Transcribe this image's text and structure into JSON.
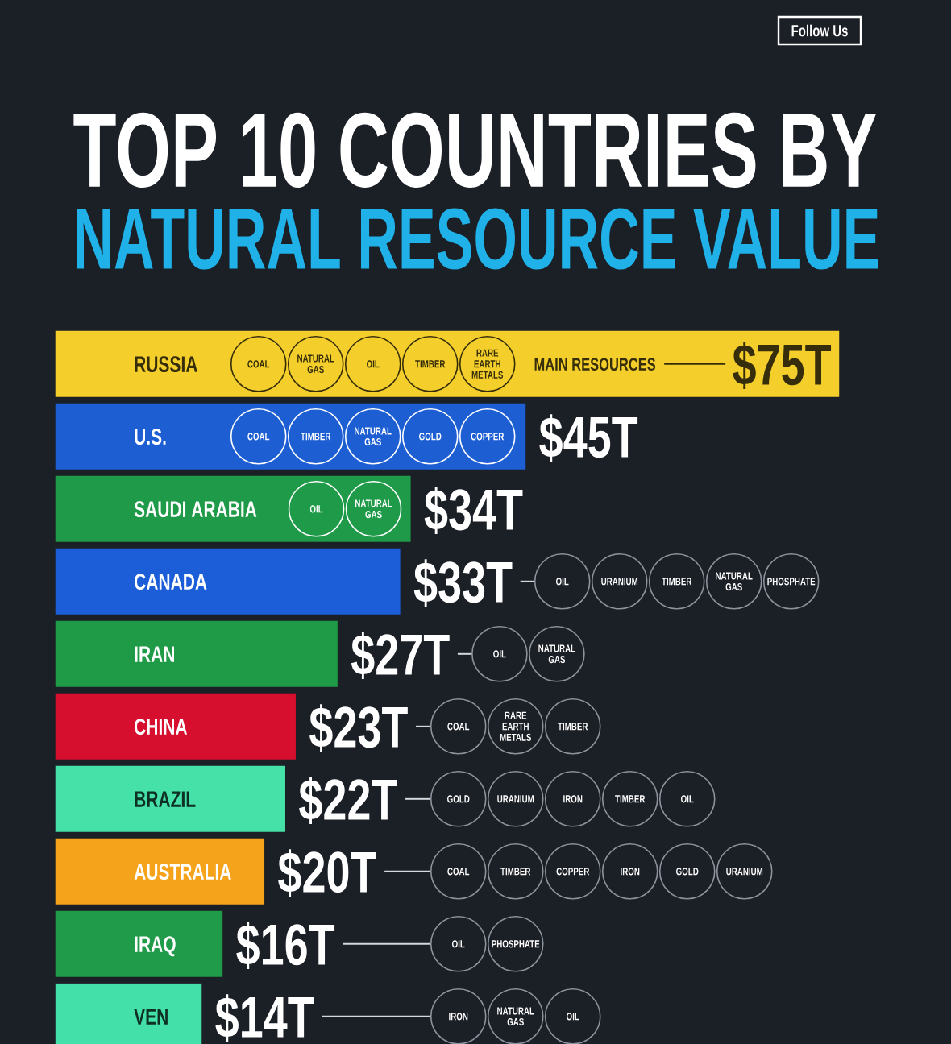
{
  "chart_data": {
    "type": "bar",
    "orientation": "horizontal",
    "title": "TOP 10 COUNTRIES BY",
    "subtitle": "NATURAL RESOURCE VALUE",
    "categories": [
      "RUSSIA",
      "U.S.",
      "SAUDI ARABIA",
      "CANADA",
      "IRAN",
      "CHINA",
      "BRAZIL",
      "AUSTRALIA",
      "IRAQ",
      "VEN"
    ],
    "values": [
      75,
      45,
      34,
      33,
      27,
      23,
      22,
      20,
      16,
      14
    ],
    "colors": [
      "#f4cf2c",
      "#1d5fd3",
      "#1e9a48",
      "#1b5ed8",
      "#1f9b47",
      "#d70f2e",
      "#45e1a8",
      "#f6a31c",
      "#1f9b4a",
      "#44e0aa"
    ],
    "value_labels": [
      "$75T",
      "$45T",
      "$34T",
      "$33T",
      "$27T",
      "$23T",
      "$22T",
      "$20T",
      "$16T",
      "$14T"
    ],
    "tick_labels": "y",
    "annotations": [
      "Follow Us",
      "MAIN RESOURCES",
      {
        "text": "COAL",
        "y": "RUSSIA"
      },
      {
        "text": "NATURAL GAS",
        "y": "RUSSIA"
      },
      {
        "text": "OIL",
        "y": "RUSSIA"
      },
      {
        "text": "TIMBER",
        "y": "RUSSIA"
      },
      {
        "text": "RARE EARTH METALS",
        "y": "RUSSIA"
      },
      {
        "text": "COAL",
        "y": "U.S."
      },
      {
        "text": "TIMBER",
        "y": "U.S."
      },
      {
        "text": "NATURAL GAS",
        "y": "U.S."
      },
      {
        "text": "GOLD",
        "y": "U.S."
      },
      {
        "text": "COPPER",
        "y": "U.S."
      },
      {
        "text": "OIL",
        "y": "SAUDI ARABIA"
      },
      {
        "text": "NATURAL GAS",
        "y": "SAUDI ARABIA"
      },
      {
        "text": "OIL",
        "y": "CANADA"
      },
      {
        "text": "URANIUM",
        "y": "CANADA"
      },
      {
        "text": "TIMBER",
        "y": "CANADA"
      },
      {
        "text": "NATURAL GAS",
        "y": "CANADA"
      },
      {
        "text": "PHOSPHATE",
        "y": "CANADA"
      },
      {
        "text": "OIL",
        "y": "IRAN"
      },
      {
        "text": "NATURAL GAS",
        "y": "IRAN"
      },
      {
        "text": "COAL",
        "y": "CHINA"
      },
      {
        "text": "RARE EARTH METALS",
        "y": "CHINA"
      },
      {
        "text": "TIMBER",
        "y": "CHINA"
      },
      {
        "text": "GOLD",
        "y": "BRAZIL"
      },
      {
        "text": "URANIUM",
        "y": "BRAZIL"
      },
      {
        "text": "IRON",
        "y": "BRAZIL"
      },
      {
        "text": "TIMBER",
        "y": "BRAZIL"
      },
      {
        "text": "OIL",
        "y": "BRAZIL"
      },
      {
        "text": "COAL",
        "y": "AUSTRALIA"
      },
      {
        "text": "TIMBER",
        "y": "AUSTRALIA"
      },
      {
        "text": "COPPER",
        "y": "AUSTRALIA"
      },
      {
        "text": "IRON",
        "y": "AUSTRALIA"
      },
      {
        "text": "GOLD",
        "y": "AUSTRALIA"
      },
      {
        "text": "URANIUM",
        "y": "AUSTRALIA"
      },
      {
        "text": "OIL",
        "y": "IRAQ"
      },
      {
        "text": "PHOSPHATE",
        "y": "IRAQ"
      },
      {
        "text": "IRON",
        "y": "VEN"
      },
      {
        "text": "NATURAL GAS",
        "y": "VEN"
      },
      {
        "text": "OIL",
        "y": "VEN"
      }
    ]
  }
}
